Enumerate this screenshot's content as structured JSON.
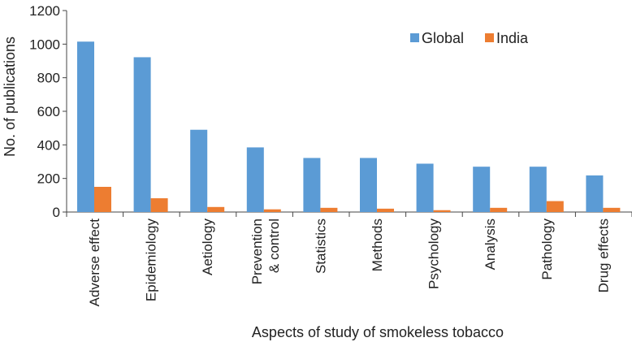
{
  "chart_data": {
    "type": "bar",
    "title": "",
    "xlabel": "Aspects of study of smokeless tobacco",
    "ylabel": "No. of publications",
    "ylim": [
      0,
      1200
    ],
    "yticks": [
      "0",
      "200",
      "400",
      "600",
      "800",
      "1000",
      "1200"
    ],
    "grid": false,
    "legend_position": "top-right",
    "categories": [
      [
        "Adverse effect"
      ],
      [
        "Epidemiology"
      ],
      [
        "Aetiology"
      ],
      [
        "Prevention",
        "& control"
      ],
      [
        "Statistics"
      ],
      [
        "Methods"
      ],
      [
        "Psychology"
      ],
      [
        "Analysis"
      ],
      [
        "Pathology"
      ],
      [
        "Drug effects"
      ]
    ],
    "series": [
      {
        "name": "Global",
        "color": "#5B9BD5",
        "values": [
          1015,
          922,
          490,
          385,
          322,
          322,
          288,
          270,
          270,
          218
        ]
      },
      {
        "name": "India",
        "color": "#ED7D31",
        "values": [
          150,
          82,
          30,
          16,
          25,
          20,
          11,
          25,
          65,
          25
        ]
      }
    ]
  }
}
